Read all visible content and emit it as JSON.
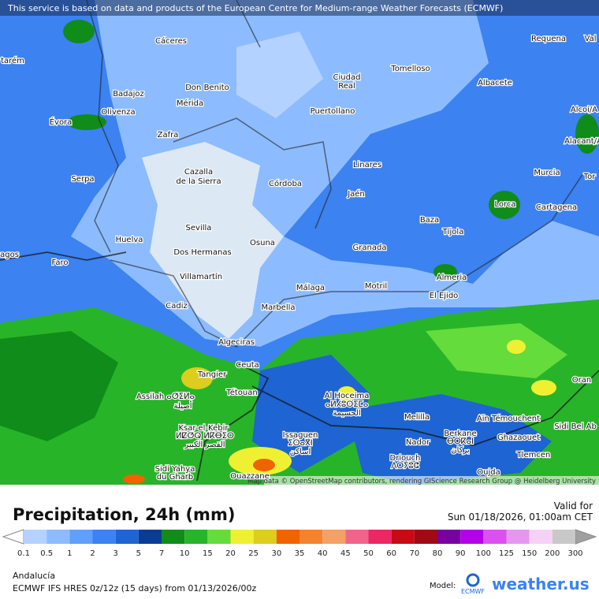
{
  "header": {
    "notice": "This service is based on data and products of the European Centre for Medium-range Weather Forecasts (ECMWF)"
  },
  "map": {
    "cities": [
      "Cáceres",
      "Requena",
      "Val",
      "tarém",
      "Tomelloso",
      "Ciudad",
      "Real",
      "Don Benito",
      "Albacete",
      "Badajoz",
      "Mérida",
      "Alcoi/A",
      "Évora",
      "Olivenza",
      "Puertollano",
      "Zafra",
      "Alacant/A",
      "Linares",
      "Murcia",
      "Cazalla",
      "de la Sierra",
      "Córdoba",
      "Serpa",
      "Tor",
      "Jaén",
      "Lorca",
      "Cartagena",
      "Baza",
      "Tíjola",
      "Sevilla",
      "Huelva",
      "Osuna",
      "Granada",
      "agos",
      "Dos Hermanas",
      "Faro",
      "Almeria",
      "Villamartín",
      "Málaga",
      "Motril",
      "El Ejido",
      "Cadiz",
      "Marbella",
      "Algeciras",
      "Ceuta",
      "Tangier",
      "Oran",
      "Tétouan",
      "Assilah ⴰⵚⵉⵍⴰ",
      "أصيلة",
      "Al Hoceima",
      "ⴰⵍⵃⵓⵙⵉⵎⴰ",
      "الحسيمة",
      "Melilla",
      "Aïn Témouchent",
      "Sidi Bel Ab",
      "Ksar-el-Kebir",
      "ⵍⵇⵚⵕ ⵍⴽⴱⵉⵔ",
      "القصر الكبير",
      "Issaguen",
      "ⵉⵙⴰⴳⵏ",
      "اساكن",
      "Nador",
      "Berkane",
      "ⴱⵔⴽⴰⵏ",
      "بركان",
      "Ghazaouet",
      "Driouch",
      "ⴷⵔⵢⵓⵛ",
      "Tlemcen",
      "Sidi Yahya",
      "du Gharb",
      "Ouazzane",
      "Oujda"
    ],
    "attribution": "Map data © OpenStreetMap contributors, rendering GIScience Research Group @ Heidelberg University"
  },
  "footer": {
    "title": "Precipitation, 24h (mm)",
    "valid_label": "Valid for",
    "valid_time": "Sun 01/18/2026, 01:00am CET",
    "region": "Andalucía",
    "model_run": "ECMWF IFS HRES 0z/12z (15 days) from  01/13/2026/00z",
    "model_label": "Model:",
    "model_name": "ECMWF",
    "brand": "weather.us"
  },
  "legend": {
    "labels": [
      0.1,
      0.5,
      1,
      2,
      3,
      5,
      7,
      10,
      15,
      20,
      25,
      30,
      35,
      40,
      45,
      50,
      60,
      70,
      80,
      90,
      100,
      125,
      150,
      200,
      300
    ],
    "colors": [
      "#b4d2ff",
      "#8cbcff",
      "#5fa0ff",
      "#3c82f0",
      "#1e64d2",
      "#0a3c96",
      "#0f8c19",
      "#28b428",
      "#64dc3c",
      "#f0f032",
      "#dccd1e",
      "#f06400",
      "#f5822d",
      "#f5a064",
      "#f0648c",
      "#eb2864",
      "#c80a14",
      "#a00a14",
      "#7800a0",
      "#b400e6",
      "#dc50f0",
      "#e696f0",
      "#f5d2f5",
      "#c8c8c8"
    ],
    "below_color": "#ffffff",
    "above_color": "#a0a0a0"
  }
}
